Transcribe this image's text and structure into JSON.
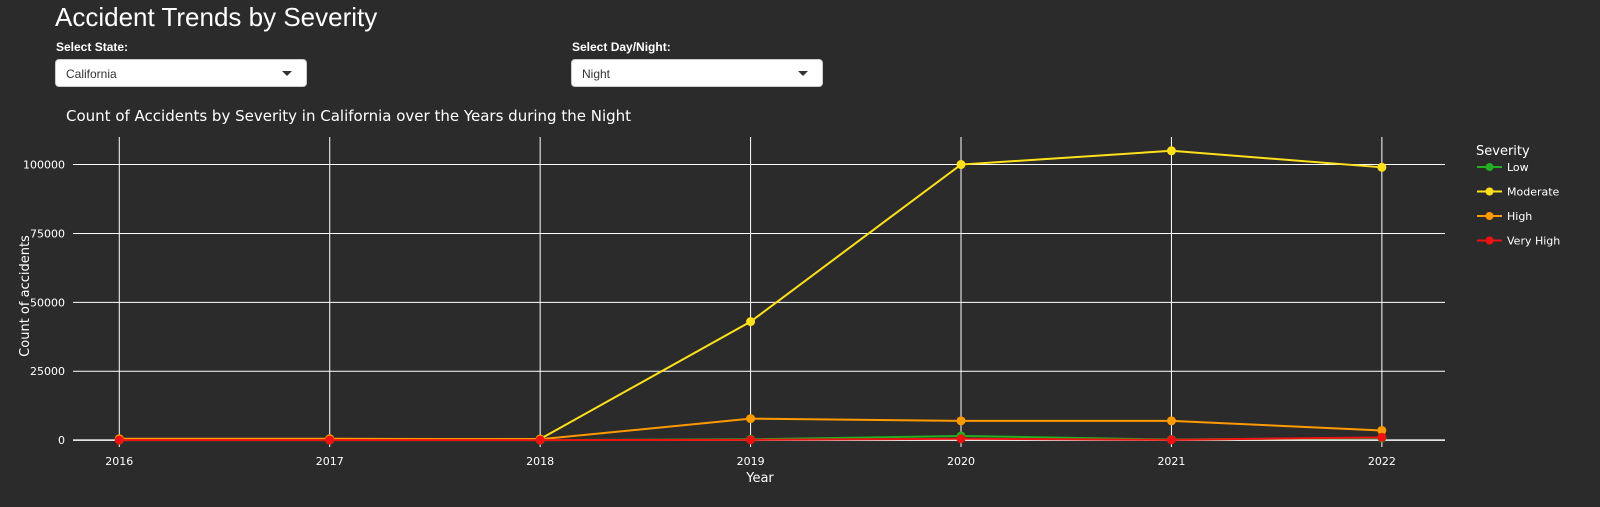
{
  "header": {
    "title": "Accident Trends by Severity"
  },
  "controls": {
    "state": {
      "label": "Select State:",
      "value": "California"
    },
    "daynight": {
      "label": "Select Day/Night:",
      "value": "Night"
    }
  },
  "chart_data": {
    "type": "line",
    "title": "Count of Accidents by Severity in California over the Years during the Night",
    "xlabel": "Year",
    "ylabel": "Count of accidents",
    "x": [
      2016,
      2017,
      2018,
      2019,
      2020,
      2021,
      2022
    ],
    "y_ticks": [
      0,
      25000,
      50000,
      75000,
      100000
    ],
    "y_tick_labels": [
      "0",
      "25000",
      "50000",
      "75000",
      "100000"
    ],
    "ylim": [
      -2500,
      110000
    ],
    "grid": true,
    "legend": {
      "title": "Severity",
      "position": "right"
    },
    "series": [
      {
        "name": "Low",
        "color": "#22b022",
        "values": [
          0,
          0,
          0,
          300,
          1500,
          200,
          800
        ]
      },
      {
        "name": "Moderate",
        "color": "#ffe01b",
        "values": [
          200,
          200,
          400,
          43000,
          100000,
          105000,
          99000
        ]
      },
      {
        "name": "High",
        "color": "#ff9900",
        "values": [
          500,
          500,
          300,
          7800,
          7000,
          7000,
          3500
        ]
      },
      {
        "name": "Very High",
        "color": "#ee1111",
        "values": [
          0,
          0,
          0,
          100,
          500,
          100,
          1000
        ]
      }
    ]
  }
}
